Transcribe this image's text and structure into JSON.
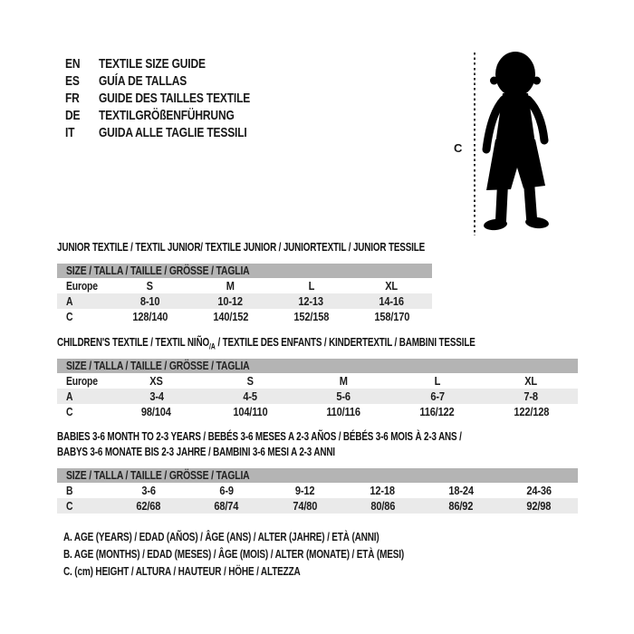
{
  "colors": {
    "background": "#ffffff",
    "size_band": "#b4b4b4",
    "shaded_row": "#eaeaea",
    "text": "#1c1c1c",
    "silhouette": "#000000"
  },
  "language_guide": {
    "items": [
      {
        "code": "EN",
        "label": "TEXTILE SIZE GUIDE"
      },
      {
        "code": "ES",
        "label": "GUÍA DE TALLAS"
      },
      {
        "code": "FR",
        "label": "GUIDE DES TAILLES TEXTILE"
      },
      {
        "code": "DE",
        "label": "TEXTILGRÖßENFÜHRUNG"
      },
      {
        "code": "IT",
        "label": "GUIDA ALLE TAGLIE TESSILI"
      }
    ]
  },
  "figure": {
    "height_marker": "C",
    "image_name": "toddler-silhouette"
  },
  "sections": [
    {
      "title_lines": [
        [
          {
            "t": "JUNIOR TEXTILE / TEXTIL JUNIOR/ TEXTILE JUNIOR / JUNIORTEXTIL / JUNIOR TESSILE"
          }
        ]
      ],
      "size_header": "SIZE / TALLA / TAILLE / GRÖSSE / TAGLIA",
      "rows": [
        {
          "label": "Europe",
          "shaded": false,
          "values": [
            "S",
            "M",
            "L",
            "XL"
          ]
        },
        {
          "label": "A",
          "shaded": true,
          "values": [
            "8-10",
            "10-12",
            "12-13",
            "14-16"
          ]
        },
        {
          "label": "C",
          "shaded": false,
          "values": [
            "128/140",
            "140/152",
            "152/158",
            "158/170"
          ]
        }
      ]
    },
    {
      "title_lines": [
        [
          {
            "t": "CHILDREN'S TEXTILE / TEXTIL NIÑO"
          },
          {
            "t": "/A",
            "sub": true
          },
          {
            "t": " / TEXTILE DES ENFANTS / KINDERTEXTIL / BAMBINI TESSILE"
          }
        ]
      ],
      "size_header": "SIZE / TALLA / TAILLE / GRÖSSE / TAGLIA",
      "rows": [
        {
          "label": "Europe",
          "shaded": false,
          "values": [
            "XS",
            "S",
            "M",
            "L",
            "XL"
          ]
        },
        {
          "label": "A",
          "shaded": true,
          "values": [
            "3-4",
            "4-5",
            "5-6",
            "6-7",
            "7-8"
          ]
        },
        {
          "label": "C",
          "shaded": false,
          "values": [
            "98/104",
            "104/110",
            "110/116",
            "116/122",
            "122/128"
          ]
        }
      ]
    },
    {
      "title_lines": [
        [
          {
            "t": "BABIES 3-6 MONTH TO 2-3 YEARS / BEBÉS 3-6 MESES A 2-3 AÑOS / BÉBÉS 3-6 MOIS À 2-3 ANS /"
          }
        ],
        [
          {
            "t": "BABYS 3-6 MONATE BIS 2-3 JAHRE / BAMBINI 3-6 MESI A 2-3 ANNI"
          }
        ]
      ],
      "size_header": "SIZE / TALLA / TAILLE / GRÖSSE / TAGLIA",
      "rows": [
        {
          "label": "B",
          "shaded": false,
          "values": [
            "3-6",
            "6-9",
            "9-12",
            "12-18",
            "18-24",
            "24-36"
          ]
        },
        {
          "label": "C",
          "shaded": true,
          "values": [
            "62/68",
            "68/74",
            "74/80",
            "80/86",
            "86/92",
            "92/98"
          ]
        }
      ]
    }
  ],
  "footnotes": [
    "A. AGE (YEARS) / EDAD (AÑOS) / ÂGE (ANS) / ALTER (JAHRE) / ETÀ (ANNI)",
    "B. AGE (MONTHS) / EDAD (MESES) / ÂGE (MOIS) / ALTER (MONATE) / ETÀ (MESI)",
    "C. (cm) HEIGHT / ALTURA / HAUTEUR / HÖHE / ALTEZZA"
  ]
}
